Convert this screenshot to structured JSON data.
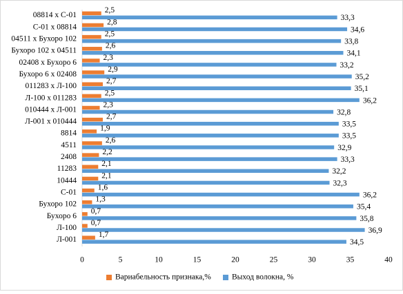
{
  "chart_data": {
    "type": "hbar",
    "categories": [
      "08814 x С-01",
      "С-01 x 08814",
      "04511 x Бухоро 102",
      "Бухоро 102 x 04511",
      "02408 x Бухоро 6",
      "Бухоро 6 x 02408",
      "011283 x Л-100",
      "Л-100 x 011283",
      "010444 x Л-001",
      "Л-001 x 010444",
      "8814",
      "4511",
      "2408",
      "11283",
      "10444",
      "С-01",
      "Бухоро 102",
      "Бухоро 6",
      "Л-100",
      "Л-001"
    ],
    "series": [
      {
        "name": "Вариабельность признака,%",
        "color": "#ed7d31",
        "values": [
          2.5,
          2.8,
          2.5,
          2.6,
          2.3,
          2.9,
          2.7,
          2.5,
          2.3,
          2.7,
          1.9,
          2.6,
          2.2,
          2.1,
          2.1,
          1.6,
          1.3,
          0.7,
          0.7,
          1.7
        ],
        "value_labels": [
          "2,5",
          "2,8",
          "2,5",
          "2,6",
          "2,3",
          "2,9",
          "2,7",
          "2,5",
          "2,3",
          "2,7",
          "1,9",
          "2,6",
          "2,2",
          "2,1",
          "2,1",
          "1,6",
          "1,3",
          "0,7",
          "0,7",
          "1,7"
        ]
      },
      {
        "name": "Выход волокна, %",
        "color": "#5b9bd5",
        "values": [
          33.3,
          34.6,
          33.8,
          34.1,
          33.2,
          35.2,
          35.1,
          36.2,
          32.8,
          33.5,
          33.5,
          32.9,
          33.3,
          32.2,
          32.3,
          36.2,
          35.4,
          35.8,
          36.9,
          34.5
        ],
        "value_labels": [
          "33,3",
          "34,6",
          "33,8",
          "34,1",
          "33,2",
          "35,2",
          "35,1",
          "36,2",
          "32,8",
          "33,5",
          "33,5",
          "32,9",
          "33,3",
          "32,2",
          "32,3",
          "36,2",
          "35,4",
          "35,8",
          "36,9",
          "34,5"
        ]
      }
    ],
    "xlim": [
      0,
      40
    ],
    "xticks": [
      0,
      5,
      10,
      15,
      20,
      25,
      30,
      35,
      40
    ],
    "legend": "bottom"
  }
}
